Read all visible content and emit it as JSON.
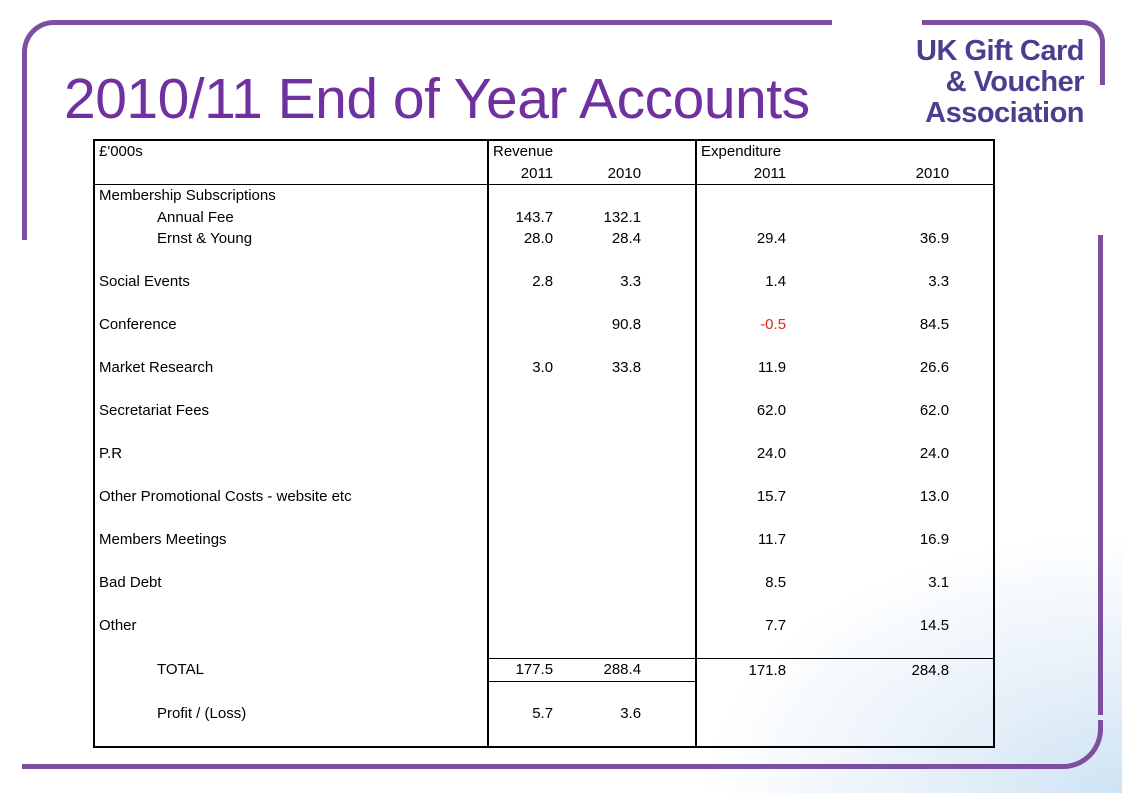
{
  "slide": {
    "title": "2010/11 End of Year Accounts",
    "logo_lines": [
      "UK Gift Card",
      "& Voucher",
      "Association"
    ],
    "accent_color": "#7d4fa1",
    "title_color": "#7030a0"
  },
  "table": {
    "unit_label": "£'000s",
    "revenue_header": "Revenue",
    "expenditure_header": "Expenditure",
    "year_current": "2011",
    "year_prior": "2010",
    "section_membership": "Membership Subscriptions",
    "rows": [
      {
        "label": "Annual Fee",
        "rev2011": "143.7",
        "rev2010": "132.1",
        "exp2011": "",
        "exp2010": ""
      },
      {
        "label": "Ernst & Young",
        "rev2011": "28.0",
        "rev2010": "28.4",
        "exp2011": "29.4",
        "exp2010": "36.9"
      },
      {
        "label": "Social Events",
        "rev2011": "2.8",
        "rev2010": "3.3",
        "exp2011": "1.4",
        "exp2010": "3.3"
      },
      {
        "label": "Conference",
        "rev2011": "",
        "rev2010": "90.8",
        "exp2011": "-0.5",
        "exp2010": "84.5"
      },
      {
        "label": "Market Research",
        "rev2011": "3.0",
        "rev2010": "33.8",
        "exp2011": "11.9",
        "exp2010": "26.6"
      },
      {
        "label": "Secretariat Fees",
        "rev2011": "",
        "rev2010": "",
        "exp2011": "62.0",
        "exp2010": "62.0"
      },
      {
        "label": "P.R",
        "rev2011": "",
        "rev2010": "",
        "exp2011": "24.0",
        "exp2010": "24.0"
      },
      {
        "label": "Other Promotional Costs - website etc",
        "rev2011": "",
        "rev2010": "",
        "exp2011": "15.7",
        "exp2010": "13.0"
      },
      {
        "label": "Members Meetings",
        "rev2011": "",
        "rev2010": "",
        "exp2011": "11.7",
        "exp2010": "16.9"
      },
      {
        "label": "Bad Debt",
        "rev2011": "",
        "rev2010": "",
        "exp2011": "8.5",
        "exp2010": "3.1"
      },
      {
        "label": "Other",
        "rev2011": "",
        "rev2010": "",
        "exp2011": "7.7",
        "exp2010": "14.5"
      }
    ],
    "total": {
      "label": "TOTAL",
      "rev2011": "177.5",
      "rev2010": "288.4",
      "exp2011": "171.8",
      "exp2010": "284.8"
    },
    "profit": {
      "label": "Profit / (Loss)",
      "rev2011": "5.7",
      "rev2010": "3.6"
    },
    "negative_color": "#d9261c"
  }
}
